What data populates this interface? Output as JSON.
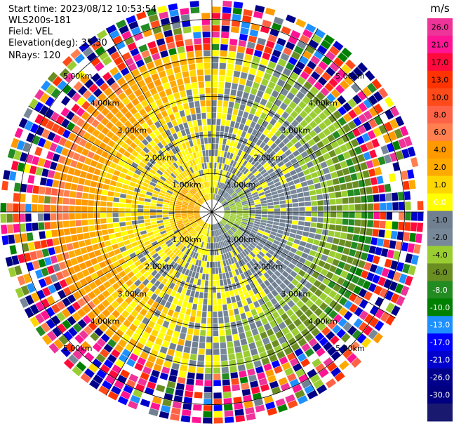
{
  "header": {
    "start_time": "Start time: 2023/08/12 10:53:54",
    "instrument": "WLS200s-181",
    "field": "Field: VEL",
    "elevation": "Elevation(deg): 35.30",
    "nrays": "NRays: 120"
  },
  "chart_data": {
    "type": "heatmap",
    "projection": "polar-ppi",
    "title": "",
    "field": "VEL",
    "rays": 120,
    "elevation_deg": 35.3,
    "range_km": [
      0,
      5.5
    ],
    "range_rings_km": [
      1,
      2,
      3,
      4,
      5
    ],
    "range_ring_labels": [
      "1.00km",
      "2.00km",
      "3.00km",
      "4.00km",
      "5.00km"
    ],
    "spokes_deg": [
      0,
      30,
      60,
      90,
      120,
      150,
      180,
      210,
      240,
      270,
      300,
      330
    ],
    "colorbar": {
      "unit": "m/s",
      "vmin": -30,
      "vmax": 30,
      "tick_labels": [
        "26.0",
        "21.0",
        "17.0",
        "13.0",
        "10.0",
        "8.0",
        "6.0",
        "4.0",
        "2.0",
        "1.0",
        "0.0",
        "-1.0",
        "-2.0",
        "-4.0",
        "-6.0",
        "-8.0",
        "-10.0",
        "-13.0",
        "-17.0",
        "-21.0",
        "-26.0",
        "-30.0"
      ],
      "colors": [
        "#ee3399",
        "#ff1493",
        "#ff0a3c",
        "#ff3300",
        "#ff4a1a",
        "#ff6347",
        "#ff7f50",
        "#ff9900",
        "#ffaa00",
        "#ffd700",
        "#ffff00",
        "#708090",
        "#778899",
        "#9acd32",
        "#6b8e23",
        "#228b22",
        "#008000",
        "#1e90ff",
        "#0000ff",
        "#0000cd",
        "#00008b",
        "#000080",
        "#191970"
      ]
    },
    "velocity_pattern": {
      "description_free_values": true,
      "near_field_sign": "positive-west-negative-east",
      "inner_speed_ms": [
        0,
        3
      ],
      "outer_speed_ms": [
        3,
        30
      ]
    }
  }
}
